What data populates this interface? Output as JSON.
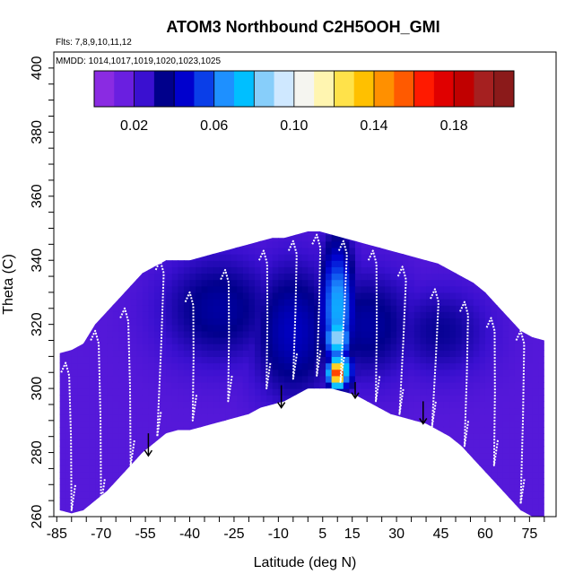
{
  "chart_data": {
    "type": "heatmap",
    "title": "ATOM3 Northbound C2H5OOH_GMI",
    "flights_label": "Flts: 7,8,9,10,11,12",
    "mmdd_label": "MMDD: 1014,1017,1019,1020,1023,1025",
    "xlabel": "Latitude (deg N)",
    "ylabel": "Theta (C)",
    "xlim": [
      -86,
      84
    ],
    "ylim": [
      260,
      405
    ],
    "x_ticks": [
      -85,
      -70,
      -55,
      -40,
      -25,
      -10,
      5,
      15,
      30,
      45,
      60,
      75
    ],
    "y_ticks": [
      260,
      280,
      300,
      320,
      340,
      360,
      380,
      400
    ],
    "colorbar": {
      "range": [
        0.0,
        0.21
      ],
      "tick_values": [
        0.02,
        0.06,
        0.1,
        0.14,
        0.18
      ],
      "tick_labels": [
        "0.02",
        "0.06",
        "0.10",
        "0.14",
        "0.18"
      ],
      "colors": [
        "#8a2be2",
        "#6a1fe0",
        "#3a10d0",
        "#00008b",
        "#0000cd",
        "#0a3ee8",
        "#1e90ff",
        "#00bfff",
        "#87cefa",
        "#cfe8ff",
        "#f5f5f0",
        "#fff5b0",
        "#ffe24a",
        "#ffc000",
        "#ff9000",
        "#ff5a00",
        "#ff1a00",
        "#e00000",
        "#c00000",
        "#a52020",
        "#8b1a1a"
      ]
    },
    "upper_boundary": [
      [
        -84,
        311
      ],
      [
        -80,
        312
      ],
      [
        -76,
        314
      ],
      [
        -72,
        320
      ],
      [
        -68,
        324
      ],
      [
        -64,
        328
      ],
      [
        -60,
        332
      ],
      [
        -56,
        336
      ],
      [
        -52,
        338
      ],
      [
        -48,
        340
      ],
      [
        -44,
        340
      ],
      [
        -40,
        340
      ],
      [
        -36,
        341
      ],
      [
        -32,
        342
      ],
      [
        -28,
        343
      ],
      [
        -24,
        344
      ],
      [
        -20,
        345
      ],
      [
        -16,
        346
      ],
      [
        -12,
        347
      ],
      [
        -8,
        347
      ],
      [
        -4,
        348
      ],
      [
        0,
        349
      ],
      [
        4,
        349
      ],
      [
        8,
        348
      ],
      [
        12,
        347
      ],
      [
        16,
        346
      ],
      [
        20,
        345
      ],
      [
        24,
        344
      ],
      [
        28,
        343
      ],
      [
        32,
        342
      ],
      [
        36,
        341
      ],
      [
        40,
        340
      ],
      [
        44,
        339
      ],
      [
        48,
        337
      ],
      [
        52,
        335
      ],
      [
        56,
        333
      ],
      [
        60,
        330
      ],
      [
        64,
        326
      ],
      [
        68,
        322
      ],
      [
        72,
        318
      ],
      [
        76,
        316
      ],
      [
        80,
        315
      ]
    ],
    "lower_boundary": [
      [
        -84,
        262
      ],
      [
        -80,
        261
      ],
      [
        -76,
        262
      ],
      [
        -72,
        265
      ],
      [
        -68,
        268
      ],
      [
        -64,
        272
      ],
      [
        -60,
        276
      ],
      [
        -56,
        280
      ],
      [
        -52,
        283
      ],
      [
        -48,
        286
      ],
      [
        -44,
        287
      ],
      [
        -40,
        287
      ],
      [
        -36,
        288
      ],
      [
        -32,
        289
      ],
      [
        -28,
        290
      ],
      [
        -24,
        291
      ],
      [
        -20,
        292
      ],
      [
        -16,
        294
      ],
      [
        -12,
        295
      ],
      [
        -8,
        296
      ],
      [
        -4,
        298
      ],
      [
        0,
        300
      ],
      [
        4,
        300
      ],
      [
        8,
        300
      ],
      [
        12,
        299
      ],
      [
        16,
        298
      ],
      [
        20,
        296
      ],
      [
        24,
        294
      ],
      [
        28,
        292
      ],
      [
        32,
        291
      ],
      [
        36,
        290
      ],
      [
        40,
        289
      ],
      [
        44,
        287
      ],
      [
        48,
        285
      ],
      [
        52,
        282
      ],
      [
        56,
        278
      ],
      [
        60,
        274
      ],
      [
        64,
        270
      ],
      [
        68,
        266
      ],
      [
        72,
        262
      ],
      [
        76,
        260
      ],
      [
        80,
        260
      ]
    ],
    "background_value": 0.015,
    "field_blobs": [
      {
        "lat": -30,
        "theta": 325,
        "sx": 14,
        "sy": 12,
        "value": 0.035
      },
      {
        "lat": -5,
        "theta": 318,
        "sx": 10,
        "sy": 15,
        "value": 0.04
      },
      {
        "lat": 20,
        "theta": 320,
        "sx": 12,
        "sy": 12,
        "value": 0.035
      },
      {
        "lat": 45,
        "theta": 318,
        "sx": 12,
        "sy": 10,
        "value": 0.03
      },
      {
        "lat": 10,
        "theta": 325,
        "sx": 4,
        "sy": 14,
        "value": 0.07
      },
      {
        "lat": 10,
        "theta": 316,
        "sx": 3,
        "sy": 5,
        "value": 0.09
      },
      {
        "lat": 11,
        "theta": 306,
        "sx": 3,
        "sy": 4,
        "value": 0.09
      },
      {
        "lat": 10,
        "theta": 305,
        "sx": 2,
        "sy": 3,
        "value": 0.18
      }
    ],
    "flight_profiles": [
      {
        "lat_top": -82,
        "theta_top": 308,
        "lat_bot": -80,
        "theta_bot": 262
      },
      {
        "lat_top": -72,
        "theta_top": 318,
        "lat_bot": -70,
        "theta_bot": 264
      },
      {
        "lat_top": -62,
        "theta_top": 325,
        "lat_bot": -60,
        "theta_bot": 276
      },
      {
        "lat_top": -50,
        "theta_top": 340,
        "lat_bot": -51,
        "theta_bot": 285
      },
      {
        "lat_top": -40,
        "theta_top": 330,
        "lat_bot": -39,
        "theta_bot": 290
      },
      {
        "lat_top": -28,
        "theta_top": 337,
        "lat_bot": -27,
        "theta_bot": 296
      },
      {
        "lat_top": -15,
        "theta_top": 343,
        "lat_bot": -14,
        "theta_bot": 300
      },
      {
        "lat_top": -5,
        "theta_top": 346,
        "lat_bot": -5,
        "theta_bot": 303
      },
      {
        "lat_top": 3,
        "theta_top": 348,
        "lat_bot": 3,
        "theta_bot": 304
      },
      {
        "lat_top": 12,
        "theta_top": 346,
        "lat_bot": 11,
        "theta_bot": 302
      },
      {
        "lat_top": 22,
        "theta_top": 343,
        "lat_bot": 23,
        "theta_bot": 296
      },
      {
        "lat_top": 32,
        "theta_top": 338,
        "lat_bot": 31,
        "theta_bot": 292
      },
      {
        "lat_top": 43,
        "theta_top": 331,
        "lat_bot": 42,
        "theta_bot": 288
      },
      {
        "lat_top": 53,
        "theta_top": 327,
        "lat_bot": 53,
        "theta_bot": 282
      },
      {
        "lat_top": 62,
        "theta_top": 322,
        "lat_bot": 63,
        "theta_bot": 276
      },
      {
        "lat_top": 72,
        "theta_top": 318,
        "lat_bot": 72,
        "theta_bot": 264
      }
    ],
    "arrows": [
      {
        "lat": -54,
        "theta_top": 286,
        "theta_bot": 279
      },
      {
        "lat": -9,
        "theta_top": 301,
        "theta_bot": 294
      },
      {
        "lat": 16,
        "theta_top": 302,
        "theta_bot": 297
      },
      {
        "lat": 39,
        "theta_top": 296,
        "theta_bot": 289
      }
    ]
  }
}
